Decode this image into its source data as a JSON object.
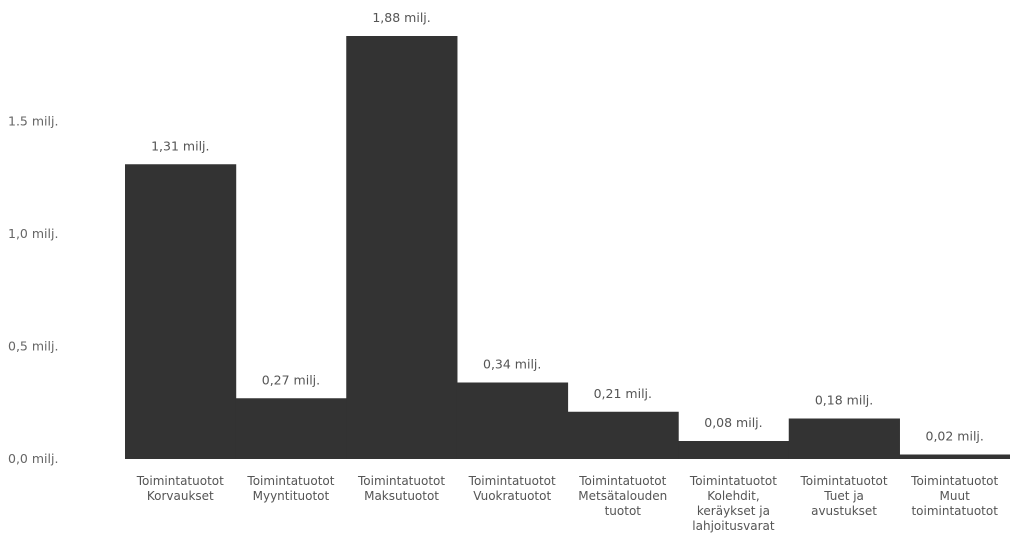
{
  "chart_data": {
    "type": "bar",
    "title": "",
    "xlabel": "",
    "ylabel": "",
    "ylim": [
      0,
      2.0
    ],
    "y_ticks": [
      {
        "value": 0.0,
        "label": "0,0 milj."
      },
      {
        "value": 0.5,
        "label": "0,5 milj."
      },
      {
        "value": 1.0,
        "label": "1,0 milj."
      },
      {
        "value": 1.5,
        "label": "1.5 milj."
      }
    ],
    "grid": false,
    "legend": "none",
    "bar_color": "#333333",
    "categories": [
      [
        "Toimintatuotot",
        "Korvaukset"
      ],
      [
        "Toimintatuotot",
        "Myyntituotot"
      ],
      [
        "Toimintatuotot",
        "Maksutuotot"
      ],
      [
        "Toimintatuotot",
        "Vuokratuotot"
      ],
      [
        "Toimintatuotot",
        "Metsätalouden",
        "tuotot"
      ],
      [
        "Toimintatuotot",
        "Kolehdit,",
        "keräykset ja",
        "lahjoitusvarat"
      ],
      [
        "Toimintatuotot",
        "Tuet ja",
        "avustukset"
      ],
      [
        "Toimintatuotot",
        "Muut",
        "toimintatuotot"
      ]
    ],
    "values": [
      1.31,
      0.27,
      1.88,
      0.34,
      0.21,
      0.08,
      0.18,
      0.02
    ],
    "value_labels": [
      "1,31 milj.",
      "0,27 milj.",
      "1,88 milj.",
      "0,34 milj.",
      "0,21 milj.",
      "0,08 milj.",
      "0,18 milj.",
      "0,02 milj."
    ]
  }
}
